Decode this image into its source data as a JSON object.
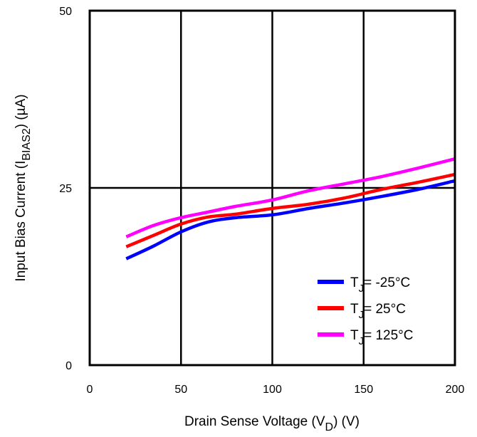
{
  "chart_data": {
    "type": "line",
    "xlabel": {
      "main": "Drain Sense Voltage (V",
      "sub": "D",
      "tail": ") (V)"
    },
    "ylabel": {
      "main": "Input Bias Current (I",
      "sub": "BIAS2",
      "tail": ") (µA)"
    },
    "xlim": [
      0,
      200
    ],
    "ylim": [
      0,
      50
    ],
    "x_ticks": [
      0,
      50,
      100,
      150,
      200
    ],
    "x_tick_labels": [
      "0",
      "50",
      "100",
      "150",
      "200"
    ],
    "y_ticks": [
      0,
      25,
      50
    ],
    "y_tick_labels": [
      "0",
      "25",
      "50"
    ],
    "grid": true,
    "legend_position": "bottom-right",
    "series": [
      {
        "legend": {
          "main": "T",
          "sub": "J",
          "tail": "= -25°C"
        },
        "color": "#0000ff",
        "x": [
          20,
          35,
          50,
          65,
          80,
          100,
          120,
          140,
          160,
          180,
          200
        ],
        "y": [
          15.0,
          16.8,
          18.8,
          20.2,
          20.8,
          21.2,
          22.1,
          22.9,
          23.8,
          24.8,
          26.0
        ]
      },
      {
        "legend": {
          "main": "T",
          "sub": "J",
          "tail": "= 25°C"
        },
        "color": "#ff0000",
        "x": [
          20,
          35,
          50,
          65,
          80,
          100,
          120,
          140,
          160,
          180,
          200
        ],
        "y": [
          16.7,
          18.3,
          19.9,
          20.9,
          21.3,
          22.1,
          22.7,
          23.6,
          24.8,
          25.8,
          26.9
        ]
      },
      {
        "legend": {
          "main": "T",
          "sub": "J",
          "tail": "= 125°C"
        },
        "color": "#ff00ff",
        "x": [
          20,
          35,
          50,
          65,
          80,
          100,
          120,
          140,
          160,
          180,
          200
        ],
        "y": [
          18.1,
          19.7,
          20.8,
          21.6,
          22.4,
          23.3,
          24.6,
          25.6,
          26.6,
          27.8,
          29.1
        ]
      }
    ]
  }
}
